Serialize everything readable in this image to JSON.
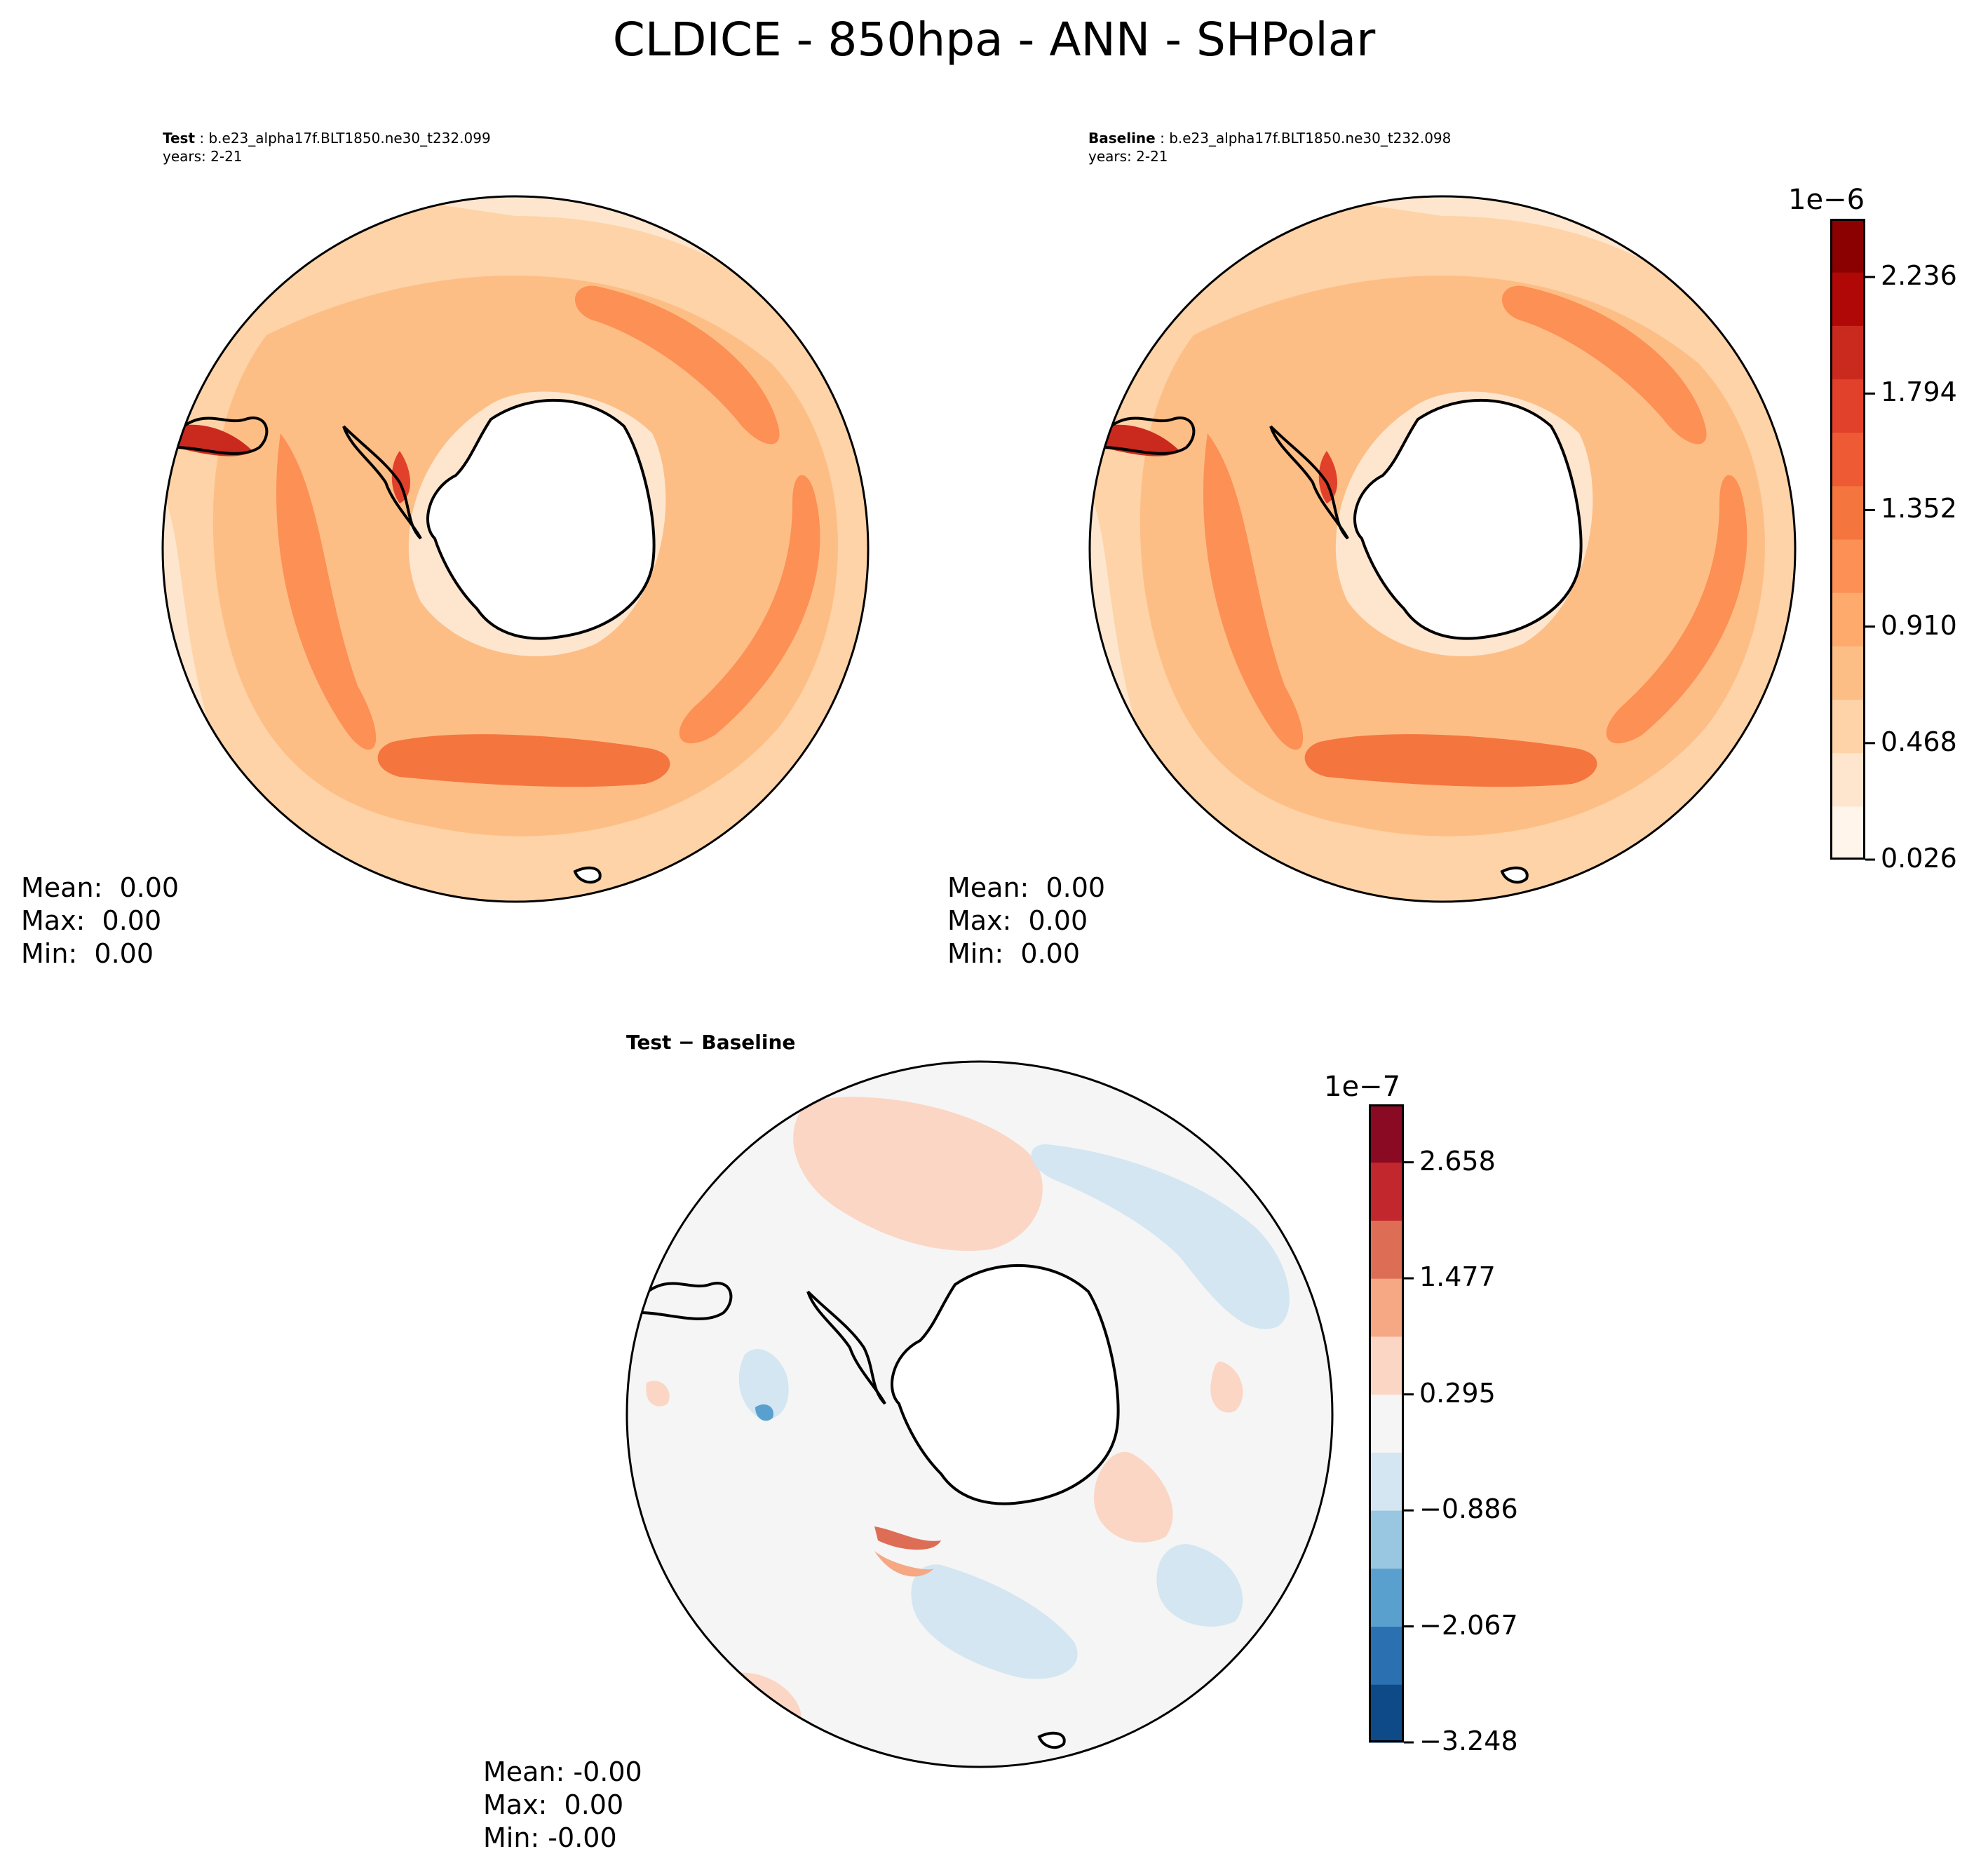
{
  "title": "CLDICE - 850hpa - ANN - SHPolar",
  "panels": {
    "test": {
      "label": "Test",
      "case": "b.e23_alpha17f.BLT1850.ne30_t232.099",
      "years": "years: 2-21",
      "stats": {
        "mean": "Mean:  0.00",
        "max": "Max:  0.00",
        "min": "Min:  0.00"
      }
    },
    "baseline": {
      "label": "Baseline",
      "case": "b.e23_alpha17f.BLT1850.ne30_t232.098",
      "years": "years: 2-21",
      "stats": {
        "mean": "Mean:  0.00",
        "max": "Max:  0.00",
        "min": "Min:  0.00"
      }
    },
    "diff": {
      "label_a": "Test",
      "label_op": "−",
      "label_b": "Baseline",
      "stats": {
        "mean": "Mean: -0.00",
        "max": "Max:  0.00",
        "min": "Min: -0.00"
      }
    }
  },
  "colorbars": {
    "main": {
      "exponent": "1e−6",
      "ticks": [
        "0.026",
        "0.468",
        "0.910",
        "1.352",
        "1.794",
        "2.236"
      ],
      "tick_values": [
        0.026,
        0.468,
        0.91,
        1.352,
        1.794,
        2.236
      ],
      "range": [
        0.026,
        2.457
      ],
      "colors": [
        "#fff5eb",
        "#fee6ce",
        "#fdd3a7",
        "#fdbe86",
        "#fdaa6c",
        "#fc9055",
        "#f5753f",
        "#ee5a34",
        "#e1402b",
        "#ca2a1e",
        "#b00707",
        "#8b0000"
      ]
    },
    "diff": {
      "exponent": "1e−7",
      "ticks": [
        "−3.248",
        "−2.067",
        "−0.886",
        "0.295",
        "1.477",
        "2.658"
      ],
      "tick_values": [
        -3.248,
        -2.067,
        -0.886,
        0.295,
        1.477,
        2.658
      ],
      "range": [
        -3.248,
        3.248
      ],
      "colors": [
        "#0e4a87",
        "#2b70b0",
        "#5aa0ce",
        "#99c6e0",
        "#d3e6f1",
        "#f5f5f5",
        "#fbd6c4",
        "#f5a883",
        "#dd6e55",
        "#c2272d",
        "#8b0a23"
      ]
    }
  }
}
